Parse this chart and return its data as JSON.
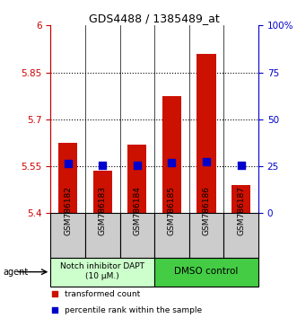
{
  "title": "GDS4488 / 1385489_at",
  "categories": [
    "GSM786182",
    "GSM786183",
    "GSM786184",
    "GSM786185",
    "GSM786186",
    "GSM786187"
  ],
  "bar_values": [
    5.625,
    5.535,
    5.62,
    5.775,
    5.91,
    5.49
  ],
  "bar_bottom": 5.4,
  "blue_dot_values": [
    5.558,
    5.552,
    5.554,
    5.562,
    5.563,
    5.554
  ],
  "ylim": [
    5.4,
    6.0
  ],
  "yticks_left": [
    5.4,
    5.55,
    5.7,
    5.85,
    6.0
  ],
  "ytick_labels_left": [
    "5.4",
    "5.55",
    "5.7",
    "5.85",
    "6"
  ],
  "yticks_right_vals": [
    0,
    25,
    50,
    75,
    100
  ],
  "bar_color": "#cc1100",
  "dot_color": "#0000cc",
  "group1_label": "Notch inhibitor DAPT\n(10 μM.)",
  "group2_label": "DMSO control",
  "group1_color": "#ccffcc",
  "group2_color": "#44cc44",
  "agent_label": "agent",
  "legend1": "transformed count",
  "legend2": "percentile rank within the sample",
  "n_group1": 3,
  "n_group2": 3,
  "left_axis_color": "#cc0000",
  "right_axis_color": "#0000cc",
  "grid_lines": [
    5.55,
    5.7,
    5.85
  ],
  "bar_width": 0.55,
  "dot_size": 30,
  "tick_label_bg": "#cccccc"
}
